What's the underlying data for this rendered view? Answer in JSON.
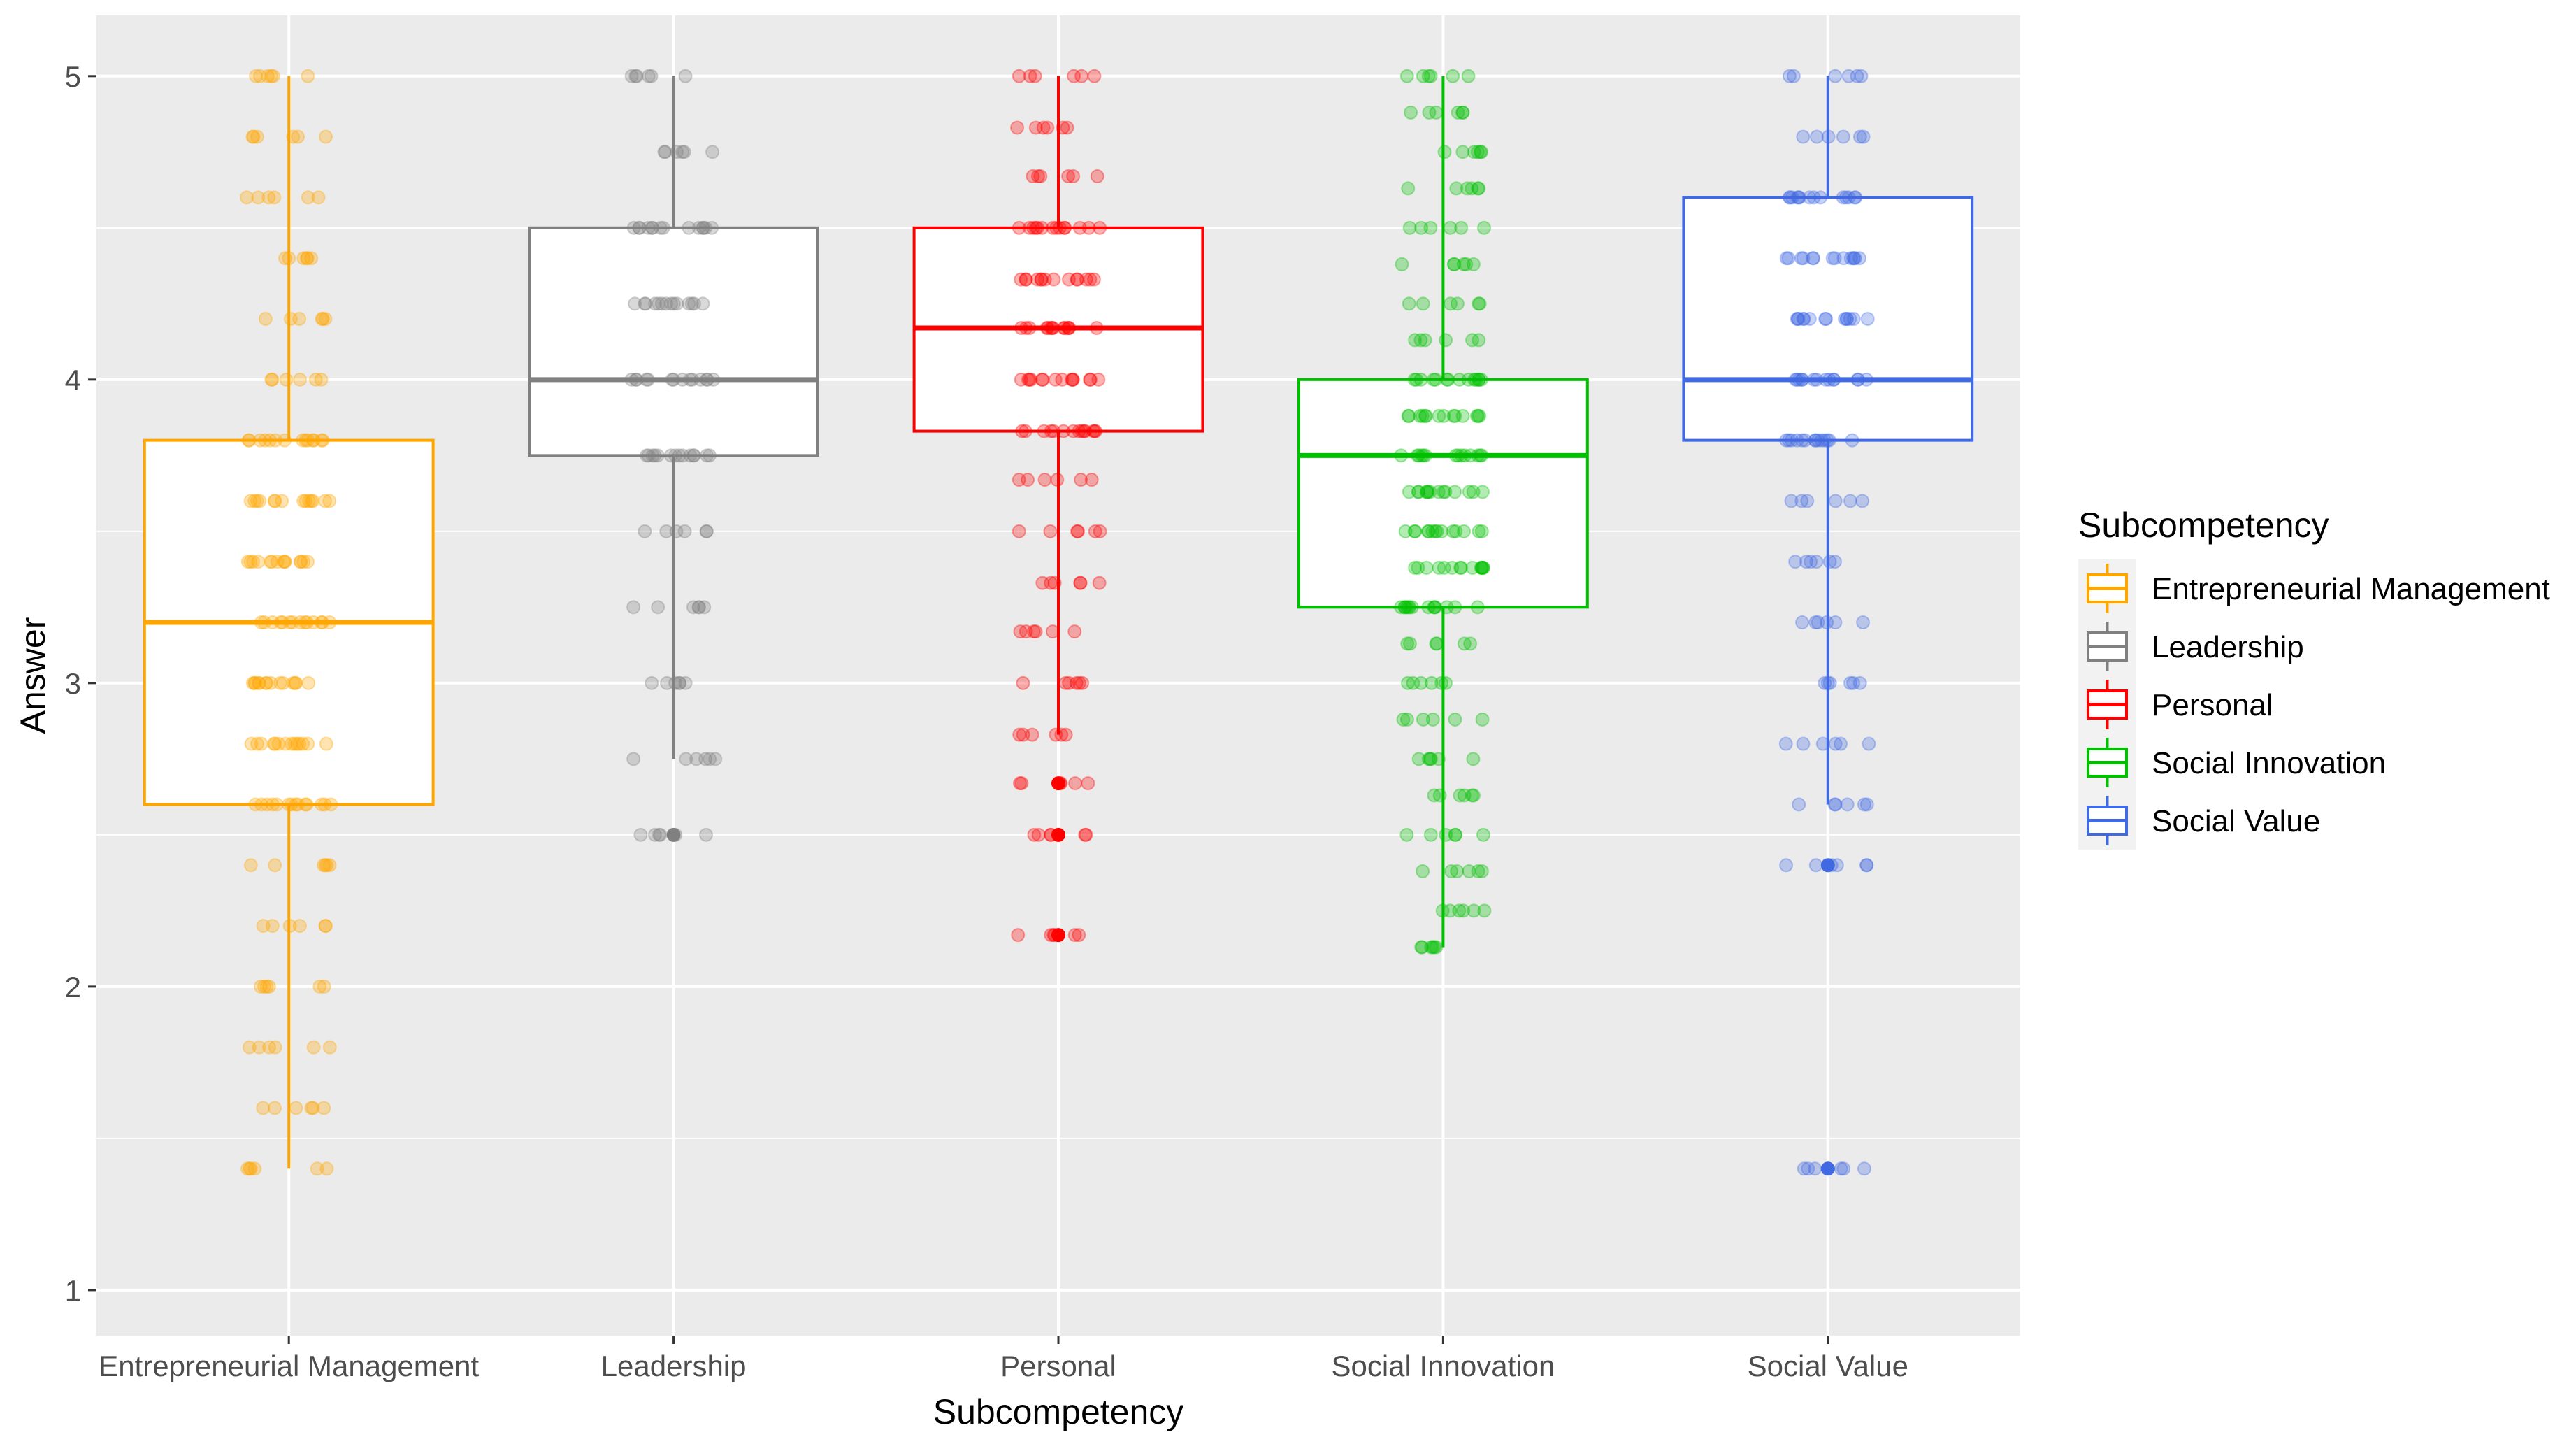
{
  "chart_data": {
    "type": "boxplot",
    "title": "",
    "xlabel": "Subcompetency",
    "ylabel": "Answer",
    "ylim": [
      0.85,
      5.2
    ],
    "yticks": [
      1,
      2,
      3,
      4,
      5
    ],
    "grid": true,
    "legend_position": "right",
    "legend": {
      "title": "Subcompetency",
      "entries": [
        "Entrepreneurial Management",
        "Leadership",
        "Personal",
        "Social Innovation",
        "Social Value"
      ]
    },
    "categories": [
      "Entrepreneurial Management",
      "Leadership",
      "Personal",
      "Social Innovation",
      "Social Value"
    ],
    "series": [
      {
        "name": "Entrepreneurial Management",
        "color": "#FFA500",
        "whisker_low": 1.4,
        "q1": 2.6,
        "median": 3.2,
        "q3": 3.8,
        "whisker_high": 5.0,
        "outliers": [],
        "jitter_levels": [
          1.4,
          1.6,
          1.8,
          2.0,
          2.2,
          2.4,
          2.6,
          2.8,
          3.0,
          3.2,
          3.4,
          3.6,
          3.8,
          4.0,
          4.2,
          4.4,
          4.6,
          4.8,
          5.0
        ]
      },
      {
        "name": "Leadership",
        "color": "#808080",
        "whisker_low": 2.75,
        "q1": 3.75,
        "median": 4.0,
        "q3": 4.5,
        "whisker_high": 5.0,
        "outliers": [
          2.5
        ],
        "jitter_levels": [
          2.5,
          2.75,
          3.0,
          3.25,
          3.5,
          3.75,
          4.0,
          4.25,
          4.5,
          4.75,
          5.0
        ]
      },
      {
        "name": "Personal",
        "color": "#FF0000",
        "whisker_low": 2.83,
        "q1": 3.83,
        "median": 4.17,
        "q3": 4.5,
        "whisker_high": 5.0,
        "outliers": [
          2.67,
          2.5,
          2.17
        ],
        "jitter_levels": [
          2.17,
          2.5,
          2.67,
          2.83,
          3.0,
          3.17,
          3.33,
          3.5,
          3.67,
          3.83,
          4.0,
          4.17,
          4.33,
          4.5,
          4.67,
          4.83,
          5.0
        ]
      },
      {
        "name": "Social Innovation",
        "color": "#00C000",
        "whisker_low": 2.13,
        "q1": 3.25,
        "median": 3.75,
        "q3": 4.0,
        "whisker_high": 5.0,
        "outliers": [],
        "jitter_levels": [
          2.13,
          2.25,
          2.38,
          2.5,
          2.63,
          2.75,
          2.88,
          3.0,
          3.13,
          3.25,
          3.38,
          3.5,
          3.63,
          3.75,
          3.88,
          4.0,
          4.13,
          4.25,
          4.38,
          4.5,
          4.63,
          4.75,
          4.88,
          5.0
        ]
      },
      {
        "name": "Social Value",
        "color": "#4169E1",
        "whisker_low": 2.6,
        "q1": 3.8,
        "median": 4.0,
        "q3": 4.6,
        "whisker_high": 5.0,
        "outliers": [
          2.4,
          1.4
        ],
        "jitter_levels": [
          1.4,
          2.4,
          2.6,
          2.8,
          3.0,
          3.2,
          3.4,
          3.6,
          3.8,
          4.0,
          4.2,
          4.4,
          4.6,
          4.8,
          5.0
        ]
      }
    ],
    "colors": {
      "panel_background": "#EBEBEB",
      "gridline": "#FFFFFF",
      "tick_text": "#4D4D4D",
      "tick_mark": "#333333"
    }
  }
}
